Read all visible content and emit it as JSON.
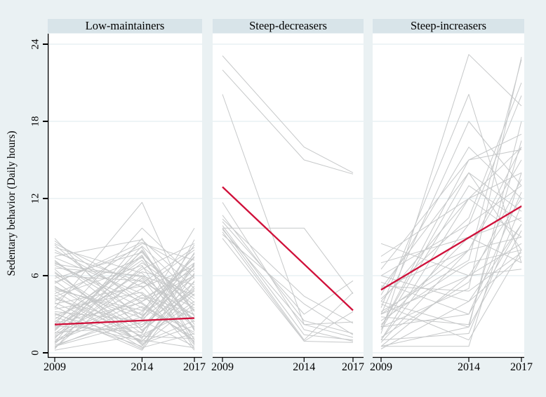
{
  "chart_data": {
    "type": "line",
    "title": "",
    "ylabel": "Sedentary behavior (Daily hours)",
    "xlabel": "",
    "x": [
      2009,
      2014,
      2017
    ],
    "xticks": [
      "2009",
      "2014",
      "2017"
    ],
    "yticks": [
      "0",
      "6",
      "12",
      "18",
      "24"
    ],
    "ytick_values": [
      0,
      6,
      12,
      18,
      24
    ],
    "ylim": [
      0,
      24
    ],
    "xlim": [
      2009,
      2017
    ],
    "grid": true,
    "legend": "none",
    "colors": {
      "background": "#eaf1f3",
      "band": "#d8e4e9",
      "plot_background": "#ffffff",
      "gridline": "#dce9ee",
      "trajectory": "#c6c8c9",
      "trend": "#d0103a",
      "axis": "#000000"
    },
    "panels": [
      {
        "label": "Low-maintainers",
        "trend": {
          "y2009": 2.2,
          "y2017": 2.7
        },
        "trajectories": [
          [
            2.0,
            7.5,
            1.0
          ],
          [
            0.5,
            3.2,
            6.8
          ],
          [
            4.8,
            0.8,
            2.5
          ],
          [
            7.2,
            2.0,
            5.5
          ],
          [
            1.2,
            5.8,
            0.6
          ],
          [
            3.5,
            11.7,
            2.8
          ],
          [
            6.0,
            1.5,
            7.8
          ],
          [
            0.8,
            4.5,
            3.0
          ],
          [
            5.5,
            8.2,
            1.8
          ],
          [
            2.8,
            0.5,
            6.2
          ],
          [
            8.7,
            3.8,
            0.9
          ],
          [
            1.5,
            6.5,
            8.5
          ],
          [
            4.2,
            2.2,
            5.0
          ],
          [
            0.3,
            8.0,
            2.2
          ],
          [
            6.8,
            4.0,
            7.0
          ],
          [
            3.0,
            1.0,
            0.4
          ],
          [
            7.8,
            5.5,
            3.5
          ],
          [
            2.2,
            9.7,
            5.8
          ],
          [
            5.0,
            3.0,
            9.7
          ],
          [
            1.8,
            7.0,
            4.2
          ],
          [
            4.5,
            0.4,
            1.5
          ],
          [
            0.6,
            2.8,
            7.5
          ],
          [
            8.2,
            6.2,
            2.0
          ],
          [
            3.8,
            5.2,
            0.8
          ],
          [
            6.2,
            1.8,
            4.8
          ],
          [
            1.0,
            4.0,
            6.0
          ],
          [
            5.8,
            7.8,
            3.2
          ],
          [
            2.5,
            0.9,
            5.2
          ],
          [
            7.0,
            3.5,
            1.2
          ],
          [
            0.4,
            6.0,
            4.5
          ],
          [
            4.0,
            8.5,
            7.2
          ],
          [
            3.2,
            2.5,
            0.5
          ],
          [
            6.5,
            0.6,
            3.8
          ],
          [
            1.4,
            5.0,
            8.0
          ],
          [
            8.0,
            4.2,
            6.5
          ],
          [
            2.6,
            7.2,
            2.4
          ],
          [
            5.2,
            1.2,
            4.0
          ],
          [
            0.9,
            3.6,
            1.6
          ],
          [
            7.5,
            8.8,
            5.0
          ],
          [
            3.6,
            0.3,
            7.0
          ],
          [
            6.0,
            5.6,
            2.9
          ],
          [
            1.6,
            2.0,
            6.6
          ],
          [
            4.4,
            6.8,
            0.3
          ],
          [
            0.2,
            1.4,
            3.4
          ],
          [
            8.4,
            2.6,
            5.9
          ],
          [
            2.9,
            5.4,
            8.2
          ],
          [
            5.6,
            0.7,
            2.1
          ],
          [
            1.1,
            8.3,
            4.4
          ],
          [
            7.1,
            2.9,
            6.1
          ],
          [
            3.4,
            4.7,
            1.4
          ],
          [
            6.3,
            1.1,
            8.8
          ],
          [
            0.7,
            6.7,
            3.7
          ],
          [
            4.9,
            3.3,
            7.4
          ],
          [
            2.4,
            7.6,
            0.7
          ],
          [
            8.9,
            1.7,
            4.9
          ],
          [
            1.3,
            4.3,
            2.7
          ],
          [
            5.4,
            8.6,
            6.3
          ],
          [
            3.1,
            0.2,
            5.6
          ],
          [
            6.9,
            5.9,
            1.9
          ],
          [
            0.5,
            2.4,
            8.4
          ],
          [
            4.6,
            7.4,
            3.9
          ],
          [
            2.1,
            1.6,
            6.9
          ],
          [
            7.4,
            4.6,
            0.2
          ],
          [
            1.9,
            6.3,
            5.3
          ],
          [
            5.1,
            2.7,
            7.7
          ],
          [
            0.8,
            8.9,
            1.7
          ],
          [
            3.9,
            0.9,
            4.6
          ],
          [
            6.6,
            6.0,
            2.6
          ],
          [
            2.3,
            3.9,
            0.9
          ],
          [
            8.5,
            5.1,
            6.7
          ],
          [
            1.7,
            7.9,
            3.3
          ],
          [
            4.3,
            1.3,
            1.1
          ]
        ]
      },
      {
        "label": "Steep-decreasers",
        "trend": {
          "y2009": 12.9,
          "y2017": 3.3
        },
        "trajectories": [
          [
            23.1,
            16.0,
            14.0
          ],
          [
            22.0,
            15.0,
            13.9
          ],
          [
            20.1,
            2.2,
            1.2
          ],
          [
            11.7,
            1.8,
            0.9
          ],
          [
            10.7,
            2.5,
            1.5
          ],
          [
            9.7,
            9.7,
            4.6
          ],
          [
            9.7,
            1.0,
            4.7
          ],
          [
            9.6,
            2.2,
            2.4
          ],
          [
            9.4,
            0.9,
            0.8
          ],
          [
            10.2,
            3.0,
            5.6
          ],
          [
            9.9,
            1.4,
            1.0
          ],
          [
            8.9,
            0.9,
            3.2
          ],
          [
            10.4,
            4.4,
            2.3
          ],
          [
            9.2,
            3.8,
            1.4
          ]
        ]
      },
      {
        "label": "Steep-increasers",
        "trend": {
          "y2009": 4.9,
          "y2017": 11.4
        },
        "trajectories": [
          [
            1.0,
            10.0,
            20.0
          ],
          [
            2.0,
            5.0,
            23.0
          ],
          [
            0.5,
            2.0,
            18.0
          ],
          [
            3.0,
            8.0,
            16.0
          ],
          [
            1.5,
            23.2,
            19.2
          ],
          [
            3.5,
            20.1,
            7.0
          ],
          [
            2.0,
            15.0,
            15.8
          ],
          [
            4.0,
            12.0,
            14.0
          ],
          [
            5.0,
            14.0,
            11.0
          ],
          [
            6.0,
            10.0,
            13.0
          ],
          [
            0.5,
            0.5,
            14.0
          ],
          [
            1.0,
            1.5,
            11.5
          ],
          [
            2.0,
            3.0,
            10.0
          ],
          [
            8.5,
            6.0,
            12.0
          ],
          [
            7.0,
            9.0,
            10.5
          ],
          [
            4.0,
            2.0,
            9.5
          ],
          [
            3.0,
            6.0,
            8.5
          ],
          [
            5.0,
            8.0,
            9.0
          ],
          [
            0.3,
            4.0,
            7.5
          ],
          [
            2.5,
            7.0,
            8.0
          ],
          [
            6.0,
            4.0,
            10.0
          ],
          [
            1.0,
            12.0,
            9.0
          ],
          [
            2.0,
            14.0,
            8.0
          ],
          [
            4.5,
            16.0,
            12.0
          ],
          [
            3.0,
            18.0,
            13.0
          ],
          [
            0.8,
            8.0,
            15.0
          ],
          [
            5.5,
            3.0,
            12.5
          ],
          [
            7.5,
            12.0,
            16.0
          ],
          [
            2.2,
            9.0,
            7.0
          ],
          [
            1.2,
            5.5,
            13.5
          ],
          [
            3.8,
            1.0,
            8.0
          ],
          [
            6.5,
            15.0,
            17.0
          ],
          [
            0.5,
            6.0,
            6.5
          ],
          [
            4.2,
            10.5,
            21.0
          ],
          [
            2.8,
            2.2,
            16.5
          ],
          [
            5.2,
            4.8,
            7.8
          ],
          [
            1.8,
            13.0,
            10.2
          ],
          [
            3.2,
            7.2,
            22.8
          ]
        ]
      }
    ]
  }
}
